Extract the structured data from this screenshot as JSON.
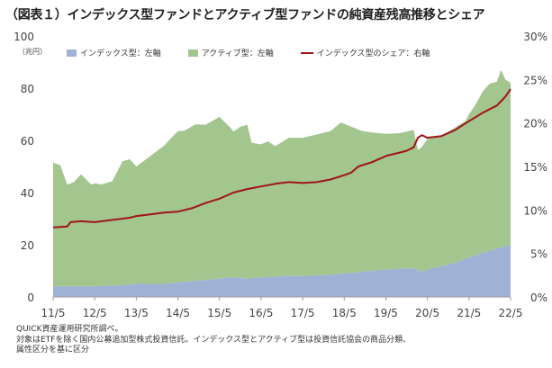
{
  "title": "（図表１）インデックス型ファンドとアクティブ型ファンドの純資産残高推移とシェア",
  "unit_left": "（兆円）",
  "notes": [
    "QUICK資産運用研究所調べ。",
    "対象はETFを除く国内公募追加型株式投資信託。インデックス型とアクティブ型は投資信託協会の商品分類、",
    "属性区分を基に区分"
  ],
  "colors": {
    "index": "#9fb2d6",
    "active": "#a3c58e",
    "share": "#a11419",
    "axis": "#9a9a9a"
  },
  "chart_data": {
    "type": "area",
    "categories": [
      "11/5",
      "12/5",
      "13/5",
      "14/5",
      "15/5",
      "16/5",
      "17/5",
      "18/5",
      "19/5",
      "20/5",
      "21/5",
      "22/5"
    ],
    "x_range": [
      2011.33,
      2022.33
    ],
    "left_axis": {
      "ticks": [
        0,
        20,
        40,
        60,
        80,
        100
      ],
      "range": [
        0,
        100
      ]
    },
    "right_axis": {
      "ticks": [
        "0%",
        "5%",
        "10%",
        "15%",
        "20%",
        "25%",
        "30%"
      ],
      "range": [
        0,
        30
      ]
    },
    "series": [
      {
        "name": "インデックス型：左軸",
        "type": "stacked-area",
        "axis": "left",
        "x": [
          2011.33,
          2012.0,
          2012.33,
          2013.0,
          2013.33,
          2014.0,
          2014.33,
          2015.0,
          2015.33,
          2015.6,
          2016.0,
          2016.33,
          2017.0,
          2017.33,
          2018.0,
          2018.33,
          2019.0,
          2019.33,
          2020.0,
          2020.2,
          2020.33,
          2021.0,
          2021.33,
          2021.67,
          2022.0,
          2022.33
        ],
        "values": [
          4,
          4,
          4,
          4.5,
          5,
          5,
          5.5,
          6.5,
          7,
          7.5,
          7,
          7.5,
          8,
          8,
          8.5,
          9,
          10,
          10.5,
          11,
          9.5,
          10.5,
          13,
          15,
          17,
          18.5,
          20
        ]
      },
      {
        "name": "アクティブ型：左軸",
        "type": "stacked-area",
        "axis": "left",
        "x": [
          2011.33,
          2011.5,
          2011.67,
          2011.83,
          2012.0,
          2012.25,
          2012.33,
          2012.5,
          2012.75,
          2013.0,
          2013.17,
          2013.33,
          2013.5,
          2013.75,
          2014.0,
          2014.33,
          2014.5,
          2014.75,
          2015.0,
          2015.33,
          2015.5,
          2015.67,
          2015.83,
          2016.0,
          2016.1,
          2016.2,
          2016.33,
          2016.5,
          2016.67,
          2017.0,
          2017.33,
          2017.67,
          2018.0,
          2018.25,
          2018.5,
          2018.75,
          2019.0,
          2019.33,
          2019.67,
          2020.0,
          2020.1,
          2020.2,
          2020.33,
          2020.5,
          2020.67,
          2021.0,
          2021.25,
          2021.33,
          2021.5,
          2021.67,
          2021.83,
          2022.0,
          2022.1,
          2022.2,
          2022.33
        ],
        "values": [
          47.5,
          46.5,
          39,
          40,
          43,
          39,
          39.5,
          39,
          40,
          47.5,
          48,
          45,
          47,
          50,
          53,
          58,
          58,
          60,
          59.5,
          62,
          59,
          56,
          58,
          59,
          52,
          51.5,
          51,
          52,
          50,
          53,
          53,
          54,
          55,
          58,
          56,
          54,
          53,
          52,
          52,
          53,
          46,
          48,
          50,
          50,
          50,
          52,
          53,
          55,
          58,
          62,
          64,
          64,
          68,
          64,
          62
        ]
      },
      {
        "name": "インデックス型のシェア：右軸",
        "type": "line",
        "axis": "right",
        "x": [
          2011.33,
          2011.67,
          2011.75,
          2012.0,
          2012.33,
          2012.67,
          2013.0,
          2013.17,
          2013.33,
          2013.67,
          2014.0,
          2014.33,
          2014.67,
          2015.0,
          2015.33,
          2015.67,
          2016.0,
          2016.33,
          2016.67,
          2017.0,
          2017.33,
          2017.67,
          2018.0,
          2018.33,
          2018.5,
          2018.67,
          2019.0,
          2019.33,
          2019.67,
          2019.83,
          2020.0,
          2020.1,
          2020.2,
          2020.33,
          2020.67,
          2021.0,
          2021.33,
          2021.67,
          2022.0,
          2022.1,
          2022.2,
          2022.33
        ],
        "values": [
          8.0,
          8.1,
          8.6,
          8.7,
          8.6,
          8.8,
          9.0,
          9.1,
          9.3,
          9.5,
          9.7,
          9.8,
          10.2,
          10.8,
          11.3,
          12.0,
          12.4,
          12.7,
          13.0,
          13.2,
          13.1,
          13.2,
          13.5,
          14.0,
          14.3,
          15.0,
          15.5,
          16.2,
          16.6,
          16.8,
          17.2,
          18.3,
          18.6,
          18.3,
          18.5,
          19.2,
          20.2,
          21.2,
          22.0,
          22.5,
          23.0,
          23.9
        ]
      }
    ]
  }
}
